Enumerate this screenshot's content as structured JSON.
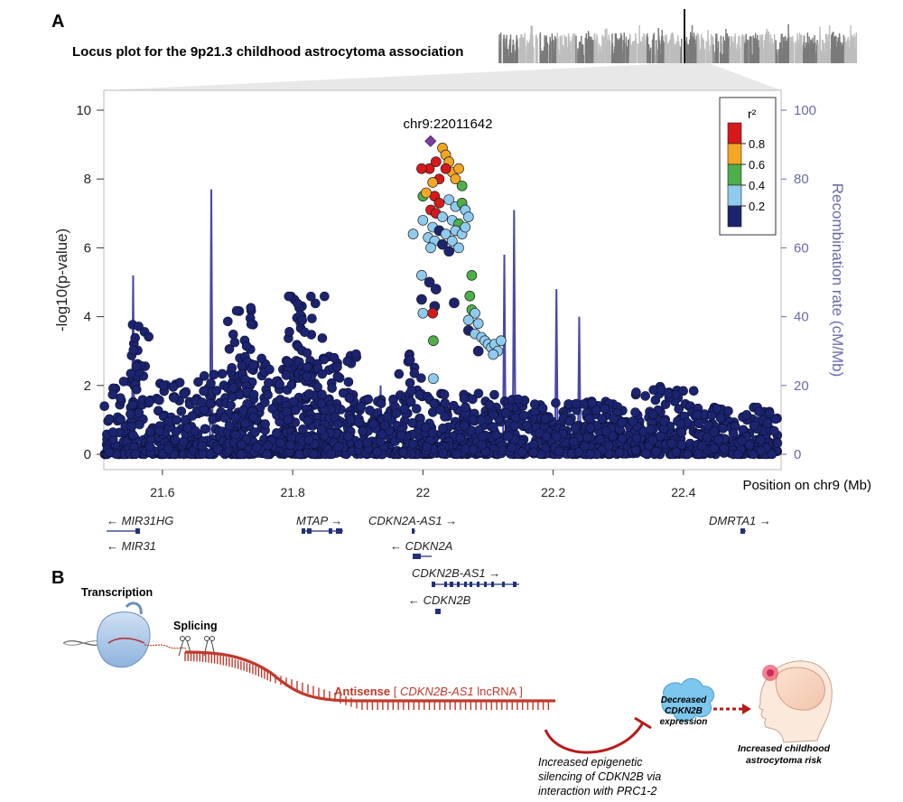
{
  "panel_a": {
    "label": "A",
    "title": "Locus plot for the 9p21.3 childhood astrocytoma association",
    "lead_snp": "chr9:22011642",
    "legend_title": "r²",
    "legend_ticks": [
      "0.8",
      "0.6",
      "0.4",
      "0.2"
    ],
    "legend_colors": [
      "#d7191c",
      "#f5a623",
      "#4daf4a",
      "#8ecbee",
      "#1c2470"
    ],
    "y_axis_label": "-log10(p-value)",
    "y2_axis_label": "Recombination rate (cM/Mb)",
    "x_axis_label": "Position on chr9 (Mb)",
    "y_ticks": [
      "0",
      "2",
      "4",
      "6",
      "8",
      "10"
    ],
    "y2_ticks": [
      "0",
      "20",
      "40",
      "60",
      "80",
      "100"
    ],
    "x_ticks": [
      "21.6",
      "21.8",
      "22",
      "22.2",
      "22.4"
    ],
    "genes": [
      {
        "name": "MIR31HG",
        "dir": "left"
      },
      {
        "name": "MIR31",
        "dir": "left"
      },
      {
        "name": "MTAP",
        "dir": "right"
      },
      {
        "name": "CDKN2A-AS1",
        "dir": "right"
      },
      {
        "name": "CDKN2A",
        "dir": "left"
      },
      {
        "name": "CDKN2B-AS1",
        "dir": "right"
      },
      {
        "name": "CDKN2B",
        "dir": "left"
      },
      {
        "name": "DMRTA1",
        "dir": "right"
      }
    ]
  },
  "panel_b": {
    "label": "B",
    "transcription": "Transcription",
    "splicing": "Splicing",
    "antisense_prefix": "Antisense",
    "antisense_gene": "CDKN2B-AS1",
    "antisense_suffix": "lncRNA",
    "silencing_line1": "Increased epigenetic",
    "silencing_line2": "silencing of CDKN2B via",
    "silencing_line3": "interaction with PRC1-2",
    "decreased_line1": "Decreased",
    "decreased_line2": "CDKN2B",
    "decreased_line3": "expression",
    "risk_line1": "Increased childhood",
    "risk_line2": "astrocytoma risk"
  },
  "chart_data": {
    "type": "scatter",
    "title": "Locus plot for the 9p21.3 childhood astrocytoma association",
    "xlabel": "Position on chr9 (Mb)",
    "ylabel": "-log10(p-value)",
    "y2label": "Recombination rate (cM/Mb)",
    "xlim": [
      21.51,
      22.55
    ],
    "ylim": [
      0,
      10.5
    ],
    "y2lim": [
      0,
      105
    ],
    "lead_snp": {
      "label": "chr9:22011642",
      "x": 22.011642,
      "y": 9.1
    },
    "highlight_points": [
      {
        "x": 22.01,
        "y": 8.3,
        "r2": 0.9
      },
      {
        "x": 22.02,
        "y": 8.5,
        "r2": 0.9
      },
      {
        "x": 22.03,
        "y": 8.9,
        "r2": 0.7
      },
      {
        "x": 22.035,
        "y": 8.7,
        "r2": 0.7
      },
      {
        "x": 22.04,
        "y": 8.5,
        "r2": 0.7
      },
      {
        "x": 22.045,
        "y": 8.2,
        "r2": 0.7
      },
      {
        "x": 22.05,
        "y": 8.0,
        "r2": 0.7
      },
      {
        "x": 22.025,
        "y": 8.0,
        "r2": 0.9
      },
      {
        "x": 22.035,
        "y": 8.3,
        "r2": 0.9
      },
      {
        "x": 21.998,
        "y": 8.3,
        "r2": 0.9
      },
      {
        "x": 22.015,
        "y": 7.9,
        "r2": 0.7
      },
      {
        "x": 22.055,
        "y": 8.3,
        "r2": 0.7
      },
      {
        "x": 22.06,
        "y": 7.8,
        "r2": 0.5
      },
      {
        "x": 22.0,
        "y": 7.5,
        "r2": 0.5
      },
      {
        "x": 22.018,
        "y": 7.5,
        "r2": 0.9
      },
      {
        "x": 22.025,
        "y": 7.3,
        "r2": 0.9
      },
      {
        "x": 22.005,
        "y": 7.6,
        "r2": 0.7
      },
      {
        "x": 22.04,
        "y": 7.4,
        "r2": 0.3
      },
      {
        "x": 22.05,
        "y": 7.2,
        "r2": 0.3
      },
      {
        "x": 22.06,
        "y": 7.3,
        "r2": 0.5
      },
      {
        "x": 22.065,
        "y": 7.1,
        "r2": 0.3
      },
      {
        "x": 22.012,
        "y": 7.1,
        "r2": 0.9
      },
      {
        "x": 22.02,
        "y": 7.0,
        "r2": 0.9
      },
      {
        "x": 22.03,
        "y": 6.9,
        "r2": 0.3
      },
      {
        "x": 22.045,
        "y": 6.8,
        "r2": 0.3
      },
      {
        "x": 22.055,
        "y": 6.7,
        "r2": 0.5
      },
      {
        "x": 22.07,
        "y": 6.9,
        "r2": 0.3
      },
      {
        "x": 22.0,
        "y": 6.8,
        "r2": 0.3
      },
      {
        "x": 22.015,
        "y": 6.6,
        "r2": 0.3
      },
      {
        "x": 22.025,
        "y": 6.5,
        "r2": 0.1
      },
      {
        "x": 22.035,
        "y": 6.4,
        "r2": 0.3
      },
      {
        "x": 22.05,
        "y": 6.5,
        "r2": 0.3
      },
      {
        "x": 22.06,
        "y": 6.4,
        "r2": 0.3
      },
      {
        "x": 22.065,
        "y": 6.6,
        "r2": 0.3
      },
      {
        "x": 21.985,
        "y": 6.4,
        "r2": 0.3
      },
      {
        "x": 22.008,
        "y": 6.3,
        "r2": 0.3
      },
      {
        "x": 22.018,
        "y": 6.2,
        "r2": 0.3
      },
      {
        "x": 22.03,
        "y": 6.1,
        "r2": 0.1
      },
      {
        "x": 22.045,
        "y": 6.2,
        "r2": 0.3
      },
      {
        "x": 22.055,
        "y": 6.0,
        "r2": 0.3
      },
      {
        "x": 22.012,
        "y": 6.0,
        "r2": 0.3
      },
      {
        "x": 22.04,
        "y": 5.9,
        "r2": 0.1
      },
      {
        "x": 22.075,
        "y": 5.2,
        "r2": 0.5
      },
      {
        "x": 21.998,
        "y": 5.2,
        "r2": 0.3
      },
      {
        "x": 22.01,
        "y": 5.0,
        "r2": 0.1
      },
      {
        "x": 22.02,
        "y": 4.8,
        "r2": 0.1
      },
      {
        "x": 22.072,
        "y": 4.6,
        "r2": 0.5
      },
      {
        "x": 21.998,
        "y": 4.5,
        "r2": 0.1
      },
      {
        "x": 22.018,
        "y": 4.3,
        "r2": 0.1
      },
      {
        "x": 22.048,
        "y": 4.4,
        "r2": 0.1
      },
      {
        "x": 22.0,
        "y": 4.1,
        "r2": 0.3
      },
      {
        "x": 22.015,
        "y": 4.1,
        "r2": 0.9
      },
      {
        "x": 22.075,
        "y": 4.2,
        "r2": 0.5
      },
      {
        "x": 22.08,
        "y": 4.1,
        "r2": 0.3
      },
      {
        "x": 22.07,
        "y": 3.9,
        "r2": 0.3
      },
      {
        "x": 22.085,
        "y": 3.8,
        "r2": 0.3
      },
      {
        "x": 22.07,
        "y": 3.6,
        "r2": 0.1
      },
      {
        "x": 22.08,
        "y": 3.5,
        "r2": 0.3
      },
      {
        "x": 22.09,
        "y": 3.4,
        "r2": 0.3
      },
      {
        "x": 22.095,
        "y": 3.3,
        "r2": 0.3
      },
      {
        "x": 22.1,
        "y": 3.2,
        "r2": 0.3
      },
      {
        "x": 22.105,
        "y": 3.1,
        "r2": 0.3
      },
      {
        "x": 22.11,
        "y": 3.2,
        "r2": 0.3
      },
      {
        "x": 22.115,
        "y": 3.0,
        "r2": 0.3
      },
      {
        "x": 22.12,
        "y": 3.3,
        "r2": 0.3
      },
      {
        "x": 22.085,
        "y": 3.0,
        "r2": 0.1
      },
      {
        "x": 22.108,
        "y": 2.9,
        "r2": 0.3
      },
      {
        "x": 22.016,
        "y": 3.3,
        "r2": 0.5
      },
      {
        "x": 22.016,
        "y": 2.2,
        "r2": 0.3
      }
    ],
    "background_series": {
      "name": "",
      "note_points_approx": "dense cloud of low-LD SNPs, generated from region peaks",
      "regions": [
        {
          "x0": 21.51,
          "x1": 21.56,
          "ymax": 2.2
        },
        {
          "x0": 21.55,
          "x1": 21.58,
          "ymax": 3.8
        },
        {
          "x0": 21.58,
          "x1": 21.66,
          "ymax": 2.2
        },
        {
          "x0": 21.66,
          "x1": 21.72,
          "ymax": 2.4
        },
        {
          "x0": 21.7,
          "x1": 21.74,
          "ymax": 4.3
        },
        {
          "x0": 21.72,
          "x1": 21.82,
          "ymax": 2.8
        },
        {
          "x0": 21.79,
          "x1": 21.86,
          "ymax": 4.6
        },
        {
          "x0": 21.82,
          "x1": 21.9,
          "ymax": 3.0
        },
        {
          "x0": 21.9,
          "x1": 21.96,
          "ymax": 1.6
        },
        {
          "x0": 21.96,
          "x1": 22.0,
          "ymax": 3.0
        },
        {
          "x0": 22.0,
          "x1": 22.12,
          "ymax": 1.8
        },
        {
          "x0": 22.12,
          "x1": 22.32,
          "ymax": 1.6
        },
        {
          "x0": 22.32,
          "x1": 22.42,
          "ymax": 2.0
        },
        {
          "x0": 22.42,
          "x1": 22.55,
          "ymax": 1.4
        }
      ]
    },
    "recombination_peaks": [
      {
        "x": 21.555,
        "rate": 52
      },
      {
        "x": 21.675,
        "rate": 77
      },
      {
        "x": 21.935,
        "rate": 20
      },
      {
        "x": 21.95,
        "rate": 17
      },
      {
        "x": 22.125,
        "rate": 58
      },
      {
        "x": 22.14,
        "rate": 71
      },
      {
        "x": 22.205,
        "rate": 48
      },
      {
        "x": 22.24,
        "rate": 40
      }
    ]
  }
}
